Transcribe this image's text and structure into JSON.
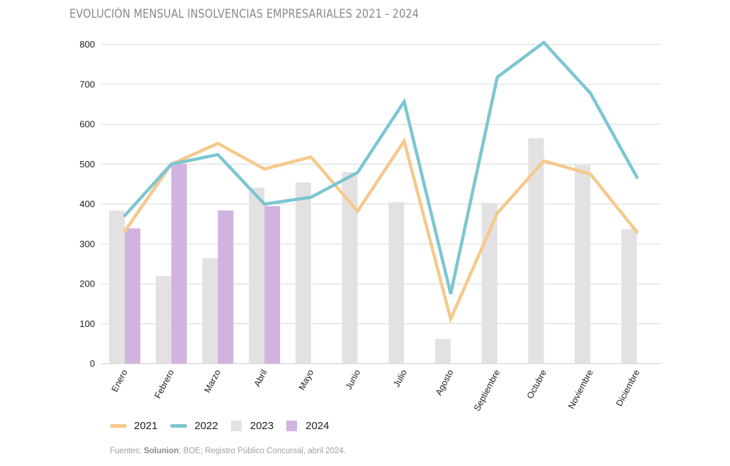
{
  "chart_data": {
    "type": "bar",
    "title": "EVOLUCIÓN MENSUAL INSOLVENCIAS  EMPRESARIALES 2021 - 2024",
    "xlabel": "",
    "ylabel": "",
    "ylim": [
      0,
      800
    ],
    "yticks": [
      0,
      100,
      200,
      300,
      400,
      500,
      600,
      700,
      800
    ],
    "grid": true,
    "legend_position": "bottom-left",
    "categories": [
      "Enero",
      "Febrero",
      "Marzo",
      "Abril",
      "Mayo",
      "Junio",
      "Julio",
      "Agosto",
      "Septiembre",
      "Octubre",
      "Noviembre",
      "Diciembre"
    ],
    "series": [
      {
        "name": "2021",
        "kind": "line",
        "color": "#F5C98C",
        "values": [
          332,
          500,
          552,
          488,
          518,
          382,
          558,
          112,
          377,
          508,
          475,
          330
        ]
      },
      {
        "name": "2022",
        "kind": "line",
        "color": "#7CC6D2",
        "values": [
          371,
          500,
          524,
          400,
          417,
          479,
          657,
          175,
          718,
          805,
          678,
          467
        ]
      },
      {
        "name": "2023",
        "kind": "bar",
        "color": "#E4E1E3",
        "values": [
          384,
          220,
          264,
          441,
          454,
          480,
          405,
          62,
          403,
          565,
          498,
          337
        ]
      },
      {
        "name": "2024",
        "kind": "bar",
        "color": "#D1B3DF",
        "values": [
          339,
          501,
          384,
          395,
          null,
          null,
          null,
          null,
          null,
          null,
          null,
          null
        ]
      }
    ]
  },
  "legend": [
    {
      "label": "2021",
      "type": "line",
      "color": "#F5C98C"
    },
    {
      "label": "2022",
      "type": "line",
      "color": "#7CC6D2"
    },
    {
      "label": "2023",
      "type": "box",
      "color": "#E4E1E3"
    },
    {
      "label": "2024",
      "type": "box",
      "color": "#D1B3DF"
    }
  ],
  "source": {
    "prefix": "Fuentes: ",
    "bold": "Solunion",
    "rest": "; BOE; Registro Público Concursal, abril 2024."
  },
  "colors": {
    "grid": "#dcdcdc",
    "axis": "#cfcfcf"
  }
}
